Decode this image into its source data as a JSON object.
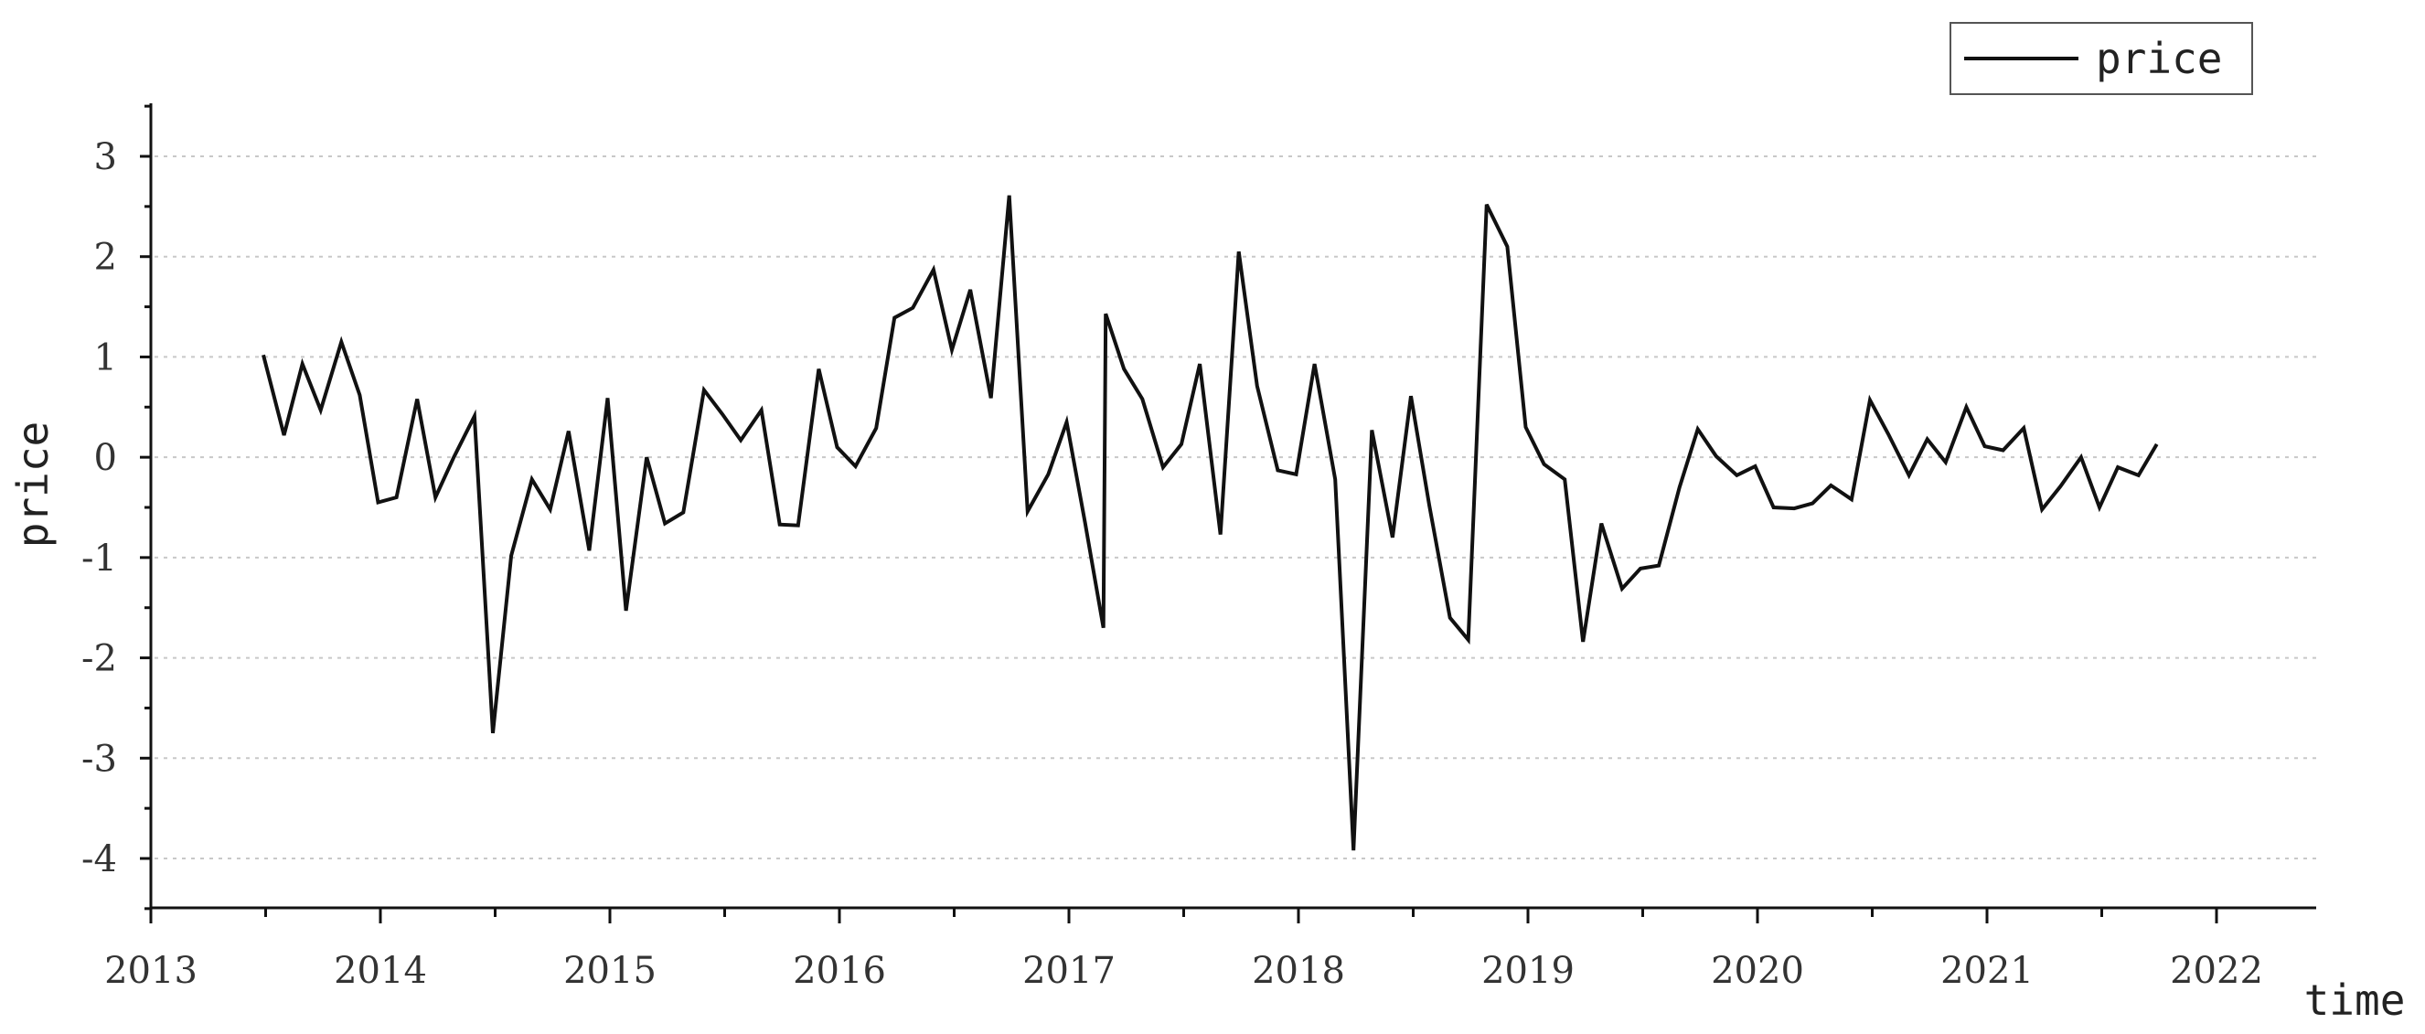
{
  "chart_data": {
    "type": "line",
    "title": "",
    "xlabel": "time",
    "ylabel": "price",
    "xlim": [
      2013,
      2022.4
    ],
    "ylim": [
      -4.5,
      3.5
    ],
    "x_ticks": [
      2013,
      2014,
      2015,
      2016,
      2017,
      2018,
      2019,
      2020,
      2021,
      2022
    ],
    "y_ticks": [
      3,
      2,
      1,
      0,
      -1,
      -2,
      -3,
      -4
    ],
    "y_tick_labels": [
      "3",
      "2",
      "1",
      "0",
      "-1",
      "-2",
      "-3",
      "-4"
    ],
    "grid": "horizontal-dotted",
    "legend": {
      "position": "top-right",
      "entries": [
        "price"
      ]
    },
    "series": [
      {
        "name": "price",
        "color": "#111111",
        "points": [
          [
            2013.49,
            1.02
          ],
          [
            2013.58,
            0.22
          ],
          [
            2013.66,
            0.93
          ],
          [
            2013.74,
            0.47
          ],
          [
            2013.83,
            1.15
          ],
          [
            2013.91,
            0.62
          ],
          [
            2013.99,
            -0.45
          ],
          [
            2014.07,
            -0.4
          ],
          [
            2014.16,
            0.58
          ],
          [
            2014.24,
            -0.4
          ],
          [
            2014.32,
            0.0
          ],
          [
            2014.41,
            0.41
          ],
          [
            2014.49,
            -2.75
          ],
          [
            2014.57,
            -0.98
          ],
          [
            2014.66,
            -0.22
          ],
          [
            2014.74,
            -0.52
          ],
          [
            2014.82,
            0.26
          ],
          [
            2014.91,
            -0.93
          ],
          [
            2014.99,
            0.59
          ],
          [
            2015.07,
            -1.53
          ],
          [
            2015.16,
            0.0
          ],
          [
            2015.24,
            -0.66
          ],
          [
            2015.32,
            -0.55
          ],
          [
            2015.41,
            0.67
          ],
          [
            2015.49,
            0.43
          ],
          [
            2015.57,
            0.17
          ],
          [
            2015.66,
            0.47
          ],
          [
            2015.74,
            -0.67
          ],
          [
            2015.82,
            -0.68
          ],
          [
            2015.91,
            0.88
          ],
          [
            2015.99,
            0.1
          ],
          [
            2016.07,
            -0.09
          ],
          [
            2016.16,
            0.29
          ],
          [
            2016.24,
            1.39
          ],
          [
            2016.32,
            1.49
          ],
          [
            2016.41,
            1.87
          ],
          [
            2016.49,
            1.07
          ],
          [
            2016.57,
            1.67
          ],
          [
            2016.66,
            0.59
          ],
          [
            2016.74,
            2.61
          ],
          [
            2016.82,
            -0.54
          ],
          [
            2016.91,
            -0.17
          ],
          [
            2016.99,
            0.35
          ],
          [
            2017.07,
            -0.65
          ],
          [
            2017.15,
            -1.7
          ],
          [
            2017.16,
            1.43
          ],
          [
            2017.24,
            0.88
          ],
          [
            2017.32,
            0.58
          ],
          [
            2017.41,
            -0.1
          ],
          [
            2017.49,
            0.13
          ],
          [
            2017.57,
            0.93
          ],
          [
            2017.66,
            -0.77
          ],
          [
            2017.74,
            2.05
          ],
          [
            2017.82,
            0.71
          ],
          [
            2017.91,
            -0.13
          ],
          [
            2017.99,
            -0.17
          ],
          [
            2018.07,
            0.93
          ],
          [
            2018.16,
            -0.22
          ],
          [
            2018.24,
            -3.92
          ],
          [
            2018.32,
            0.27
          ],
          [
            2018.41,
            -0.8
          ],
          [
            2018.49,
            0.61
          ],
          [
            2018.57,
            -0.48
          ],
          [
            2018.66,
            -1.6
          ],
          [
            2018.74,
            -1.82
          ],
          [
            2018.82,
            2.52
          ],
          [
            2018.91,
            2.1
          ],
          [
            2018.99,
            0.3
          ],
          [
            2019.07,
            -0.07
          ],
          [
            2019.16,
            -0.22
          ],
          [
            2019.24,
            -1.84
          ],
          [
            2019.32,
            -0.66
          ],
          [
            2019.41,
            -1.31
          ],
          [
            2019.49,
            -1.11
          ],
          [
            2019.57,
            -1.08
          ],
          [
            2019.66,
            -0.3
          ],
          [
            2019.74,
            0.28
          ],
          [
            2019.82,
            0.01
          ],
          [
            2019.91,
            -0.18
          ],
          [
            2019.99,
            -0.09
          ],
          [
            2020.07,
            -0.5
          ],
          [
            2020.16,
            -0.51
          ],
          [
            2020.24,
            -0.46
          ],
          [
            2020.32,
            -0.28
          ],
          [
            2020.41,
            -0.42
          ],
          [
            2020.49,
            0.57
          ],
          [
            2020.57,
            0.23
          ],
          [
            2020.66,
            -0.18
          ],
          [
            2020.74,
            0.18
          ],
          [
            2020.82,
            -0.05
          ],
          [
            2020.91,
            0.5
          ],
          [
            2020.99,
            0.11
          ],
          [
            2021.07,
            0.07
          ],
          [
            2021.16,
            0.29
          ],
          [
            2021.24,
            -0.52
          ],
          [
            2021.32,
            -0.29
          ],
          [
            2021.41,
            0.0
          ],
          [
            2021.49,
            -0.5
          ],
          [
            2021.57,
            -0.1
          ],
          [
            2021.66,
            -0.18
          ],
          [
            2021.74,
            0.13
          ]
        ]
      }
    ]
  }
}
